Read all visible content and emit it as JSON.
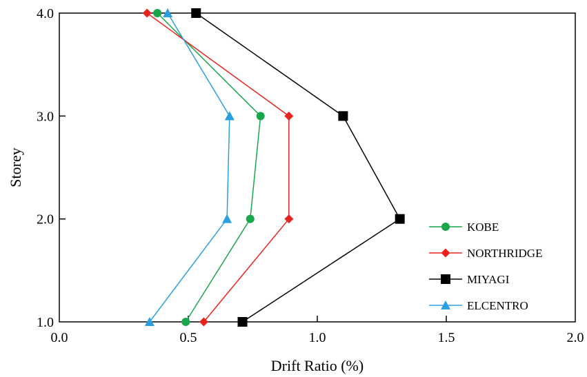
{
  "chart_data": {
    "type": "line",
    "title": "",
    "xlabel": "Drift Ratio (%)",
    "ylabel": "Storey",
    "xlim": [
      0.0,
      2.0
    ],
    "ylim": [
      1.0,
      4.0
    ],
    "x_ticks": [
      "0.0",
      "0.5",
      "1.0",
      "1.5",
      "2.0"
    ],
    "y_ticks": [
      "1.0",
      "2.0",
      "3.0",
      "4.0"
    ],
    "grid": false,
    "legend_position": "bottom-right",
    "series": [
      {
        "name": "KOBE",
        "color": "#1aa64a",
        "marker": "circle",
        "points": [
          [
            0.49,
            1.0
          ],
          [
            0.74,
            2.0
          ],
          [
            0.78,
            3.0
          ],
          [
            0.38,
            4.0
          ]
        ]
      },
      {
        "name": "NORTHRIDGE",
        "color": "#e8231f",
        "marker": "diamond",
        "points": [
          [
            0.56,
            1.0
          ],
          [
            0.89,
            2.0
          ],
          [
            0.89,
            3.0
          ],
          [
            0.34,
            4.0
          ]
        ]
      },
      {
        "name": "MIYAGI",
        "color": "#000000",
        "marker": "square",
        "points": [
          [
            0.71,
            1.0
          ],
          [
            1.32,
            2.0
          ],
          [
            1.1,
            3.0
          ],
          [
            0.53,
            4.0
          ]
        ]
      },
      {
        "name": "ELCENTRO",
        "color": "#2a9fe0",
        "marker": "triangle",
        "points": [
          [
            0.35,
            1.0
          ],
          [
            0.65,
            2.0
          ],
          [
            0.66,
            3.0
          ],
          [
            0.42,
            4.0
          ]
        ]
      }
    ]
  }
}
